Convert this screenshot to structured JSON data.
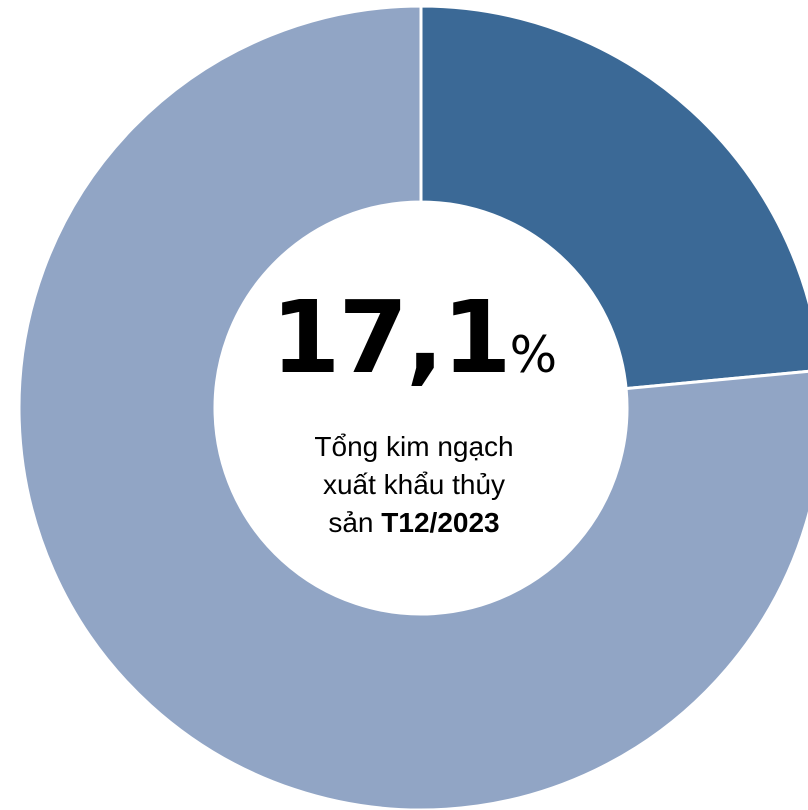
{
  "chart_data": {
    "type": "pie",
    "style": "donut",
    "slices": [
      {
        "value": 23.5,
        "color": "#3b6996"
      },
      {
        "value": 76.5,
        "color": "#91a5c5"
      }
    ],
    "center": {
      "value": "17,1",
      "unit": "%",
      "caption_line1": "Tổng kim ngạch",
      "caption_line2": "xuất khẩu thủy",
      "caption_line3_prefix": "sản",
      "caption_line3_bold": "T12/2023"
    }
  }
}
